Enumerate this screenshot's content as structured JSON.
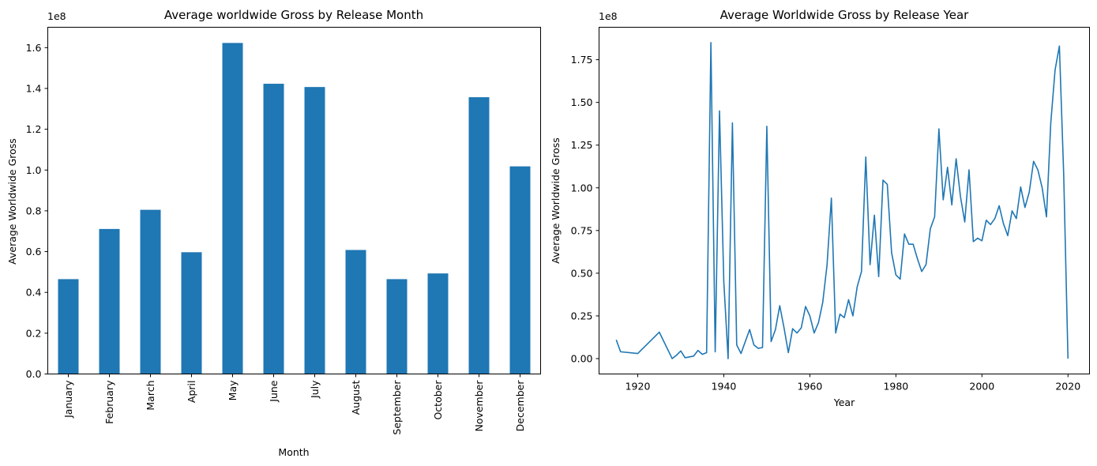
{
  "chart_data": [
    {
      "type": "bar",
      "title": "Average worldwide Gross by Release Month",
      "xlabel": "Month",
      "ylabel": "Average Worldwide Gross",
      "offset_label": "1e8",
      "categories": [
        "January",
        "February",
        "March",
        "April",
        "May",
        "June",
        "July",
        "August",
        "September",
        "October",
        "November",
        "December"
      ],
      "values": [
        0.465,
        0.711,
        0.805,
        0.597,
        1.623,
        1.423,
        1.407,
        0.608,
        0.465,
        0.493,
        1.357,
        1.018
      ],
      "ylim": [
        0,
        1.7
      ],
      "yticks": [
        "0.0",
        "0.2",
        "0.4",
        "0.6",
        "0.8",
        "1.0",
        "1.2",
        "1.4",
        "1.6"
      ],
      "color": "#1f77b4"
    },
    {
      "type": "line",
      "title": "Average Worldwide Gross by Release Year",
      "xlabel": "Year",
      "ylabel": "Average Worldwide Gross",
      "offset_label": "1e8",
      "xlim": [
        1911,
        2025
      ],
      "ylim": [
        -0.09,
        1.94
      ],
      "xticks": [
        "1920",
        "1940",
        "1960",
        "1980",
        "2000",
        "2020"
      ],
      "yticks": [
        "0.00",
        "0.25",
        "0.50",
        "0.75",
        "1.00",
        "1.25",
        "1.50",
        "1.75"
      ],
      "color": "#1f77b4",
      "x": [
        1915,
        1916,
        1920,
        1925,
        1928,
        1929,
        1930,
        1931,
        1933,
        1934,
        1935,
        1936,
        1937,
        1938,
        1939,
        1940,
        1941,
        1942,
        1943,
        1944,
        1946,
        1947,
        1948,
        1949,
        1950,
        1951,
        1952,
        1953,
        1954,
        1955,
        1956,
        1957,
        1958,
        1959,
        1960,
        1961,
        1962,
        1963,
        1964,
        1965,
        1966,
        1967,
        1968,
        1969,
        1970,
        1971,
        1972,
        1973,
        1974,
        1975,
        1976,
        1977,
        1978,
        1979,
        1980,
        1981,
        1982,
        1983,
        1984,
        1985,
        1986,
        1987,
        1988,
        1989,
        1990,
        1991,
        1992,
        1993,
        1994,
        1995,
        1996,
        1997,
        1998,
        1999,
        2000,
        2001,
        2002,
        2003,
        2004,
        2005,
        2006,
        2007,
        2008,
        2009,
        2010,
        2011,
        2012,
        2013,
        2014,
        2015,
        2016,
        2017,
        2018,
        2019,
        2020
      ],
      "y": [
        0.11,
        0.04,
        0.03,
        0.155,
        0.0,
        0.02,
        0.045,
        0.005,
        0.015,
        0.048,
        0.025,
        0.035,
        1.85,
        0.04,
        1.45,
        0.45,
        0.0,
        1.38,
        0.08,
        0.03,
        0.17,
        0.08,
        0.06,
        0.065,
        1.36,
        0.1,
        0.17,
        0.31,
        0.18,
        0.035,
        0.175,
        0.15,
        0.18,
        0.305,
        0.25,
        0.15,
        0.21,
        0.33,
        0.55,
        0.94,
        0.15,
        0.26,
        0.24,
        0.345,
        0.25,
        0.42,
        0.51,
        1.18,
        0.55,
        0.84,
        0.48,
        1.045,
        1.02,
        0.62,
        0.49,
        0.465,
        0.73,
        0.67,
        0.67,
        0.585,
        0.51,
        0.55,
        0.76,
        0.83,
        1.345,
        0.93,
        1.12,
        0.9,
        1.17,
        0.95,
        0.8,
        1.105,
        0.685,
        0.705,
        0.69,
        0.81,
        0.785,
        0.82,
        0.895,
        0.79,
        0.72,
        0.865,
        0.82,
        1.005,
        0.885,
        0.975,
        1.155,
        1.105,
        1.0,
        0.83,
        1.38,
        1.69,
        1.83,
        1.08,
        0.0
      ]
    }
  ]
}
